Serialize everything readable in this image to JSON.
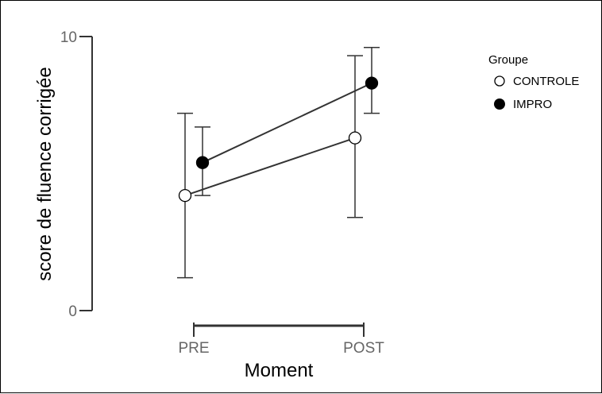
{
  "chart_data": {
    "type": "line",
    "title": "",
    "xlabel": "Moment",
    "ylabel": "score de fluence corrigée",
    "categories": [
      "PRE",
      "POST"
    ],
    "ylim": [
      0,
      10
    ],
    "yticks": [
      "0",
      "10"
    ],
    "grid": false,
    "legend": {
      "title": "Groupe",
      "placement": "top-right",
      "entries": [
        "CONTROLE",
        "IMPRO"
      ]
    },
    "series": [
      {
        "name": "CONTROLE",
        "marker": "open-circle",
        "color": "#000000",
        "fill": "#ffffff",
        "values": [
          4.2,
          6.3
        ],
        "error_low": [
          1.2,
          3.4
        ],
        "error_high": [
          7.2,
          9.3
        ]
      },
      {
        "name": "IMPRO",
        "marker": "filled-circle",
        "color": "#000000",
        "fill": "#000000",
        "values": [
          5.4,
          8.3
        ],
        "error_low": [
          4.2,
          7.2
        ],
        "error_high": [
          6.7,
          9.6
        ]
      }
    ]
  }
}
